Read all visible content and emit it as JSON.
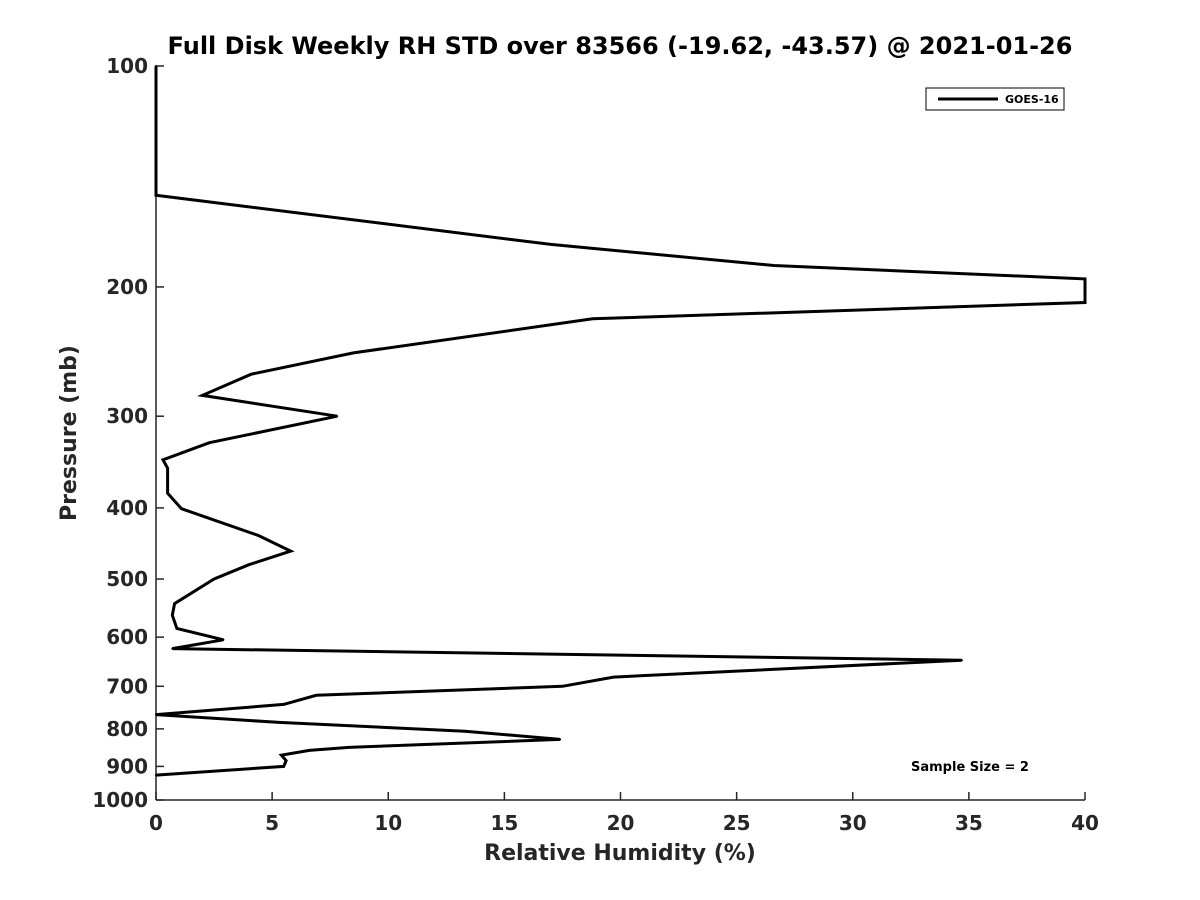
{
  "chart_data": {
    "type": "line",
    "title": "Full Disk Weekly RH STD over 83566 (-19.62, -43.57) @ 2021-01-26",
    "xlabel": "Relative Humidity (%)",
    "ylabel": "Pressure (mb)",
    "xlim": [
      0,
      40
    ],
    "ylim": [
      100,
      1000
    ],
    "y_scale": "log",
    "y_reversed": true,
    "x_ticks": [
      0,
      5,
      10,
      15,
      20,
      25,
      30,
      35,
      40
    ],
    "y_ticks": [
      100,
      200,
      300,
      400,
      500,
      600,
      700,
      800,
      900,
      1000
    ],
    "grid": false,
    "legend_position": "top-right",
    "series": [
      {
        "name": "GOES-16",
        "color": "#000000",
        "points": [
          {
            "x": 0.0,
            "y": 100
          },
          {
            "x": 0.0,
            "y": 150
          },
          {
            "x": 17.0,
            "y": 175
          },
          {
            "x": 26.6,
            "y": 187
          },
          {
            "x": 40.0,
            "y": 195
          },
          {
            "x": 40.0,
            "y": 210
          },
          {
            "x": 18.8,
            "y": 221
          },
          {
            "x": 8.5,
            "y": 246
          },
          {
            "x": 4.1,
            "y": 263
          },
          {
            "x": 2.0,
            "y": 281
          },
          {
            "x": 7.8,
            "y": 300
          },
          {
            "x": 2.3,
            "y": 326
          },
          {
            "x": 0.3,
            "y": 344
          },
          {
            "x": 0.5,
            "y": 353
          },
          {
            "x": 0.5,
            "y": 382
          },
          {
            "x": 1.1,
            "y": 401
          },
          {
            "x": 4.4,
            "y": 436
          },
          {
            "x": 5.8,
            "y": 458
          },
          {
            "x": 4.0,
            "y": 478
          },
          {
            "x": 2.5,
            "y": 500
          },
          {
            "x": 0.8,
            "y": 540
          },
          {
            "x": 0.7,
            "y": 560
          },
          {
            "x": 0.9,
            "y": 584
          },
          {
            "x": 2.9,
            "y": 605
          },
          {
            "x": 0.7,
            "y": 622
          },
          {
            "x": 34.7,
            "y": 645
          },
          {
            "x": 19.7,
            "y": 680
          },
          {
            "x": 17.5,
            "y": 700
          },
          {
            "x": 6.9,
            "y": 720
          },
          {
            "x": 5.5,
            "y": 741
          },
          {
            "x": 0.0,
            "y": 765
          },
          {
            "x": 5.3,
            "y": 784
          },
          {
            "x": 13.3,
            "y": 806
          },
          {
            "x": 17.4,
            "y": 827
          },
          {
            "x": 8.3,
            "y": 848
          },
          {
            "x": 6.6,
            "y": 856
          },
          {
            "x": 5.4,
            "y": 869
          },
          {
            "x": 5.6,
            "y": 884
          },
          {
            "x": 5.5,
            "y": 900
          },
          {
            "x": 0.0,
            "y": 925
          }
        ]
      }
    ],
    "annotations": [
      "Sample Size = 2"
    ]
  }
}
